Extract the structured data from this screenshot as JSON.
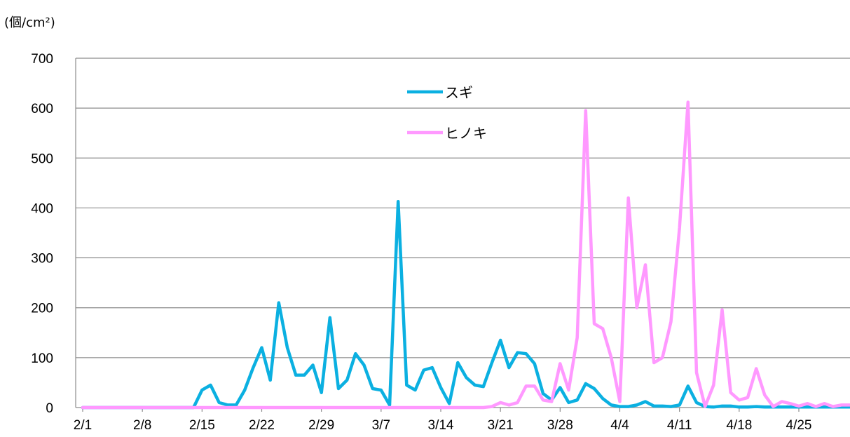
{
  "chart_data": {
    "type": "line",
    "unit_label": "(個/cm²)",
    "title": "",
    "xlabel": "",
    "ylabel": "",
    "ylim": [
      0,
      700
    ],
    "yticks": [
      0,
      100,
      200,
      300,
      400,
      500,
      600,
      700
    ],
    "xticks": [
      "2/1",
      "2/8",
      "2/15",
      "2/22",
      "2/29",
      "3/7",
      "3/14",
      "3/21",
      "3/28",
      "4/4",
      "4/11",
      "4/18",
      "4/25"
    ],
    "grid": true,
    "legend_position": "top-center",
    "x_start_date": "2/1",
    "series": [
      {
        "name": "スギ",
        "color": "#0bb0e1",
        "values": [
          0,
          0,
          0,
          0,
          0,
          0,
          0,
          0,
          0,
          0,
          0,
          0,
          0,
          0,
          35,
          45,
          10,
          5,
          5,
          35,
          80,
          120,
          55,
          210,
          120,
          65,
          65,
          85,
          30,
          180,
          38,
          55,
          108,
          85,
          38,
          35,
          5,
          413,
          45,
          35,
          75,
          80,
          40,
          8,
          90,
          60,
          45,
          42,
          90,
          135,
          80,
          110,
          108,
          88,
          28,
          15,
          40,
          10,
          15,
          48,
          38,
          18,
          5,
          2,
          2,
          5,
          12,
          3,
          3,
          2,
          5,
          43,
          10,
          2,
          1,
          3,
          3,
          1,
          1,
          2,
          1,
          1,
          1,
          1,
          1,
          1,
          1,
          1,
          1,
          1,
          1
        ]
      },
      {
        "name": "ヒノキ",
        "color": "#ff99ff",
        "values": [
          0,
          0,
          0,
          0,
          0,
          0,
          0,
          0,
          0,
          0,
          0,
          0,
          0,
          0,
          0,
          0,
          0,
          0,
          0,
          0,
          0,
          0,
          0,
          0,
          0,
          0,
          0,
          0,
          0,
          0,
          0,
          0,
          0,
          0,
          0,
          0,
          0,
          0,
          0,
          0,
          0,
          0,
          0,
          0,
          0,
          0,
          0,
          0,
          2,
          10,
          5,
          10,
          43,
          43,
          15,
          12,
          88,
          35,
          140,
          595,
          168,
          158,
          100,
          12,
          420,
          200,
          286,
          90,
          100,
          172,
          360,
          612,
          70,
          2,
          45,
          196,
          30,
          15,
          20,
          78,
          25,
          2,
          12,
          8,
          3,
          8,
          2,
          8,
          2,
          5,
          5
        ]
      }
    ]
  }
}
